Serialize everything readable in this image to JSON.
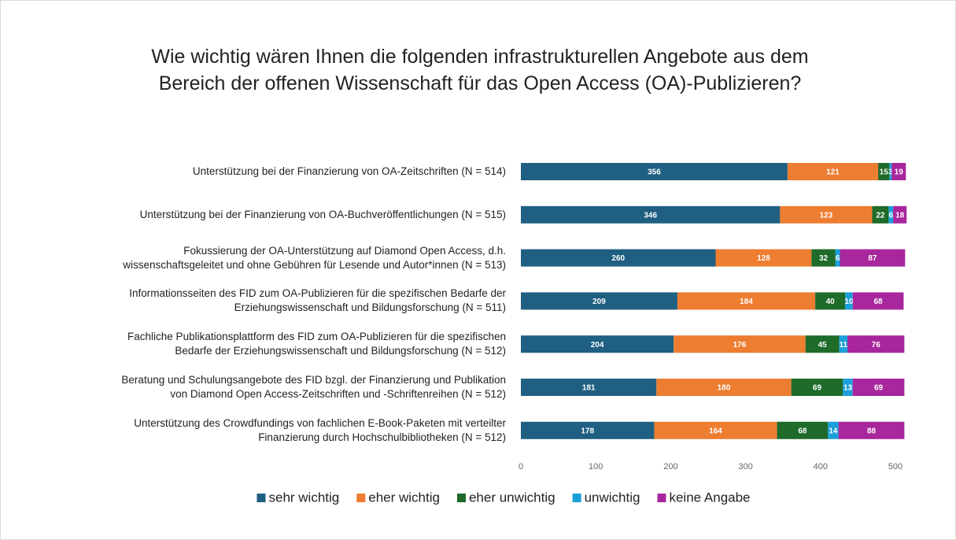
{
  "chart_data": {
    "type": "stacked-bar-horizontal",
    "title": "Wie wichtig wären Ihnen die folgenden infrastrukturellen Angebote aus dem Bereich der offenen Wissenschaft für das Open Access (OA)-Publizieren?",
    "categories": [
      "Unterstützung bei der Finanzierung von OA-Zeitschriften (N = 514)",
      "Unterstützung bei der Finanzierung von OA-Buchveröffentlichungen (N = 515)",
      "Fokussierung der OA-Unterstützung auf Diamond Open Access, d.h.\nwissenschaftsgeleitet und ohne Gebühren für Lesende und Autor*innen (N = 513)",
      "Informationsseiten des FID zum OA-Publizieren für die spezifischen Bedarfe der\nErziehungswissenschaft und Bildungsforschung (N = 511)",
      "Fachliche Publikationsplattform des FID zum OA-Publizieren für die spezifischen\nBedarfe der Erziehungswissenschaft und Bildungsforschung (N = 512)",
      "Beratung und Schulungsangebote des FID bzgl. der Finanzierung und Publikation\nvon Diamond Open Access-Zeitschriften und -Schriftenreihen (N = 512)",
      "Unterstützung des Crowdfundings von fachlichen E-Book-Paketen mit verteilter\nFinanzierung durch Hochschulbibliotheken (N = 512)"
    ],
    "series": [
      {
        "name": "sehr wichtig",
        "color": "#1f5f82",
        "values": [
          356,
          346,
          260,
          209,
          204,
          181,
          178
        ]
      },
      {
        "name": "eher wichtig",
        "color": "#ed7d31",
        "values": [
          121,
          123,
          128,
          184,
          176,
          180,
          164
        ]
      },
      {
        "name": "eher unwichtig",
        "color": "#1e6b2a",
        "values": [
          15,
          22,
          32,
          40,
          45,
          69,
          68
        ]
      },
      {
        "name": "unwichtig",
        "color": "#1a9fd9",
        "values": [
          3,
          6,
          6,
          10,
          11,
          13,
          14
        ]
      },
      {
        "name": "keine Angabe",
        "color": "#a8279c",
        "values": [
          19,
          18,
          87,
          68,
          76,
          69,
          88
        ]
      }
    ],
    "xlim": [
      0,
      520
    ],
    "xticks": [
      0,
      100,
      200,
      300,
      400,
      500
    ],
    "grid": false,
    "legend": "bottom"
  }
}
